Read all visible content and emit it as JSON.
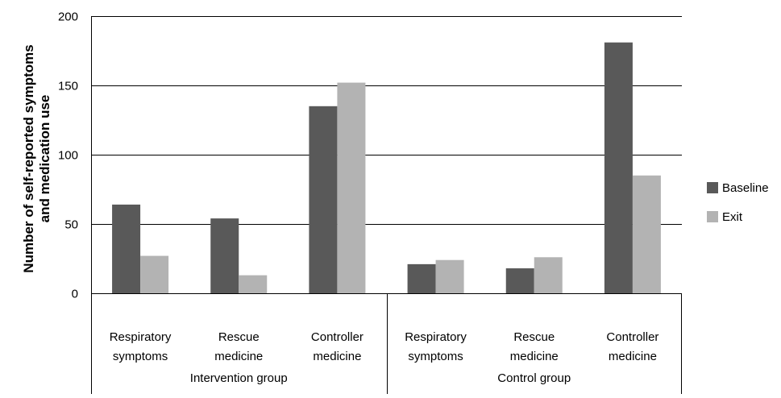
{
  "chart_data": {
    "type": "bar",
    "title": "",
    "xlabel": "",
    "ylabel": [
      "Number of self-reported symptoms",
      "and medication use"
    ],
    "ylim": [
      0,
      200
    ],
    "yticks": [
      "0",
      "50",
      "100",
      "150",
      "200"
    ],
    "grid": true,
    "legend_position": "right",
    "groups": [
      {
        "label": "Intervention group",
        "categories": [
          [
            "Respiratory",
            "symptoms"
          ],
          [
            "Rescue",
            "medicine"
          ],
          [
            "Controller",
            "medicine"
          ]
        ]
      },
      {
        "label": "Control group",
        "categories": [
          [
            "Respiratory",
            "symptoms"
          ],
          [
            "Rescue",
            "medicine"
          ],
          [
            "Controller",
            "medicine"
          ]
        ]
      }
    ],
    "series": [
      {
        "name": "Baseline",
        "color": "#595959",
        "values": [
          64,
          54,
          135,
          21,
          18,
          181
        ]
      },
      {
        "name": "Exit",
        "color": "#b3b3b3",
        "values": [
          27,
          13,
          152,
          24,
          26,
          85
        ]
      }
    ]
  }
}
